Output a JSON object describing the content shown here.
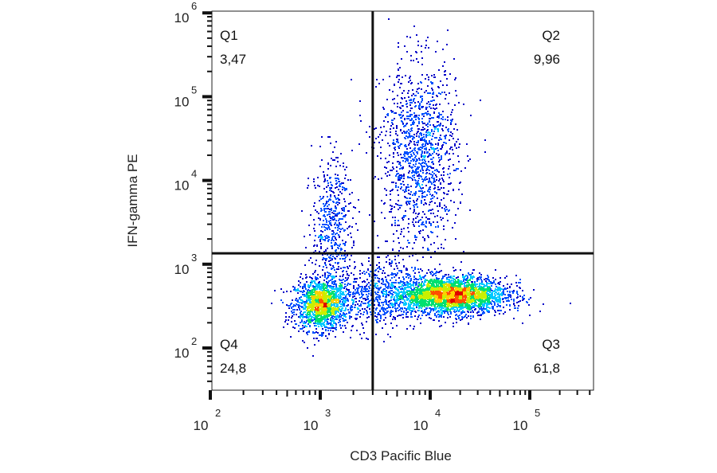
{
  "chart_data": {
    "type": "scatter",
    "subtype": "flow-cytometry-density-dot-plot",
    "xlabel": "CD3 Pacific Blue",
    "ylabel": "IFN-gamma PE",
    "x_scale": "biexponential",
    "y_scale": "log",
    "x_ticks": [
      {
        "base": "10",
        "exp": "2",
        "value": 100
      },
      {
        "base": "10",
        "exp": "3",
        "value": 1000
      },
      {
        "base": "10",
        "exp": "4",
        "value": 10000
      },
      {
        "base": "10",
        "exp": "5",
        "value": 100000
      }
    ],
    "y_ticks": [
      {
        "base": "10",
        "exp": "2",
        "value": 100
      },
      {
        "base": "10",
        "exp": "3",
        "value": 1000
      },
      {
        "base": "10",
        "exp": "4",
        "value": 10000
      },
      {
        "base": "10",
        "exp": "5",
        "value": 100000
      },
      {
        "base": "10",
        "exp": "6",
        "value": 1000000
      }
    ],
    "xlim": [
      100,
      400000
    ],
    "ylim": [
      30,
      1050000
    ],
    "grid": false,
    "gates": {
      "x_threshold": 3000,
      "y_threshold": 1350
    },
    "quadrants": [
      {
        "name": "Q1",
        "value": "3,47",
        "position": "top-left"
      },
      {
        "name": "Q2",
        "value": "9,96",
        "position": "top-right"
      },
      {
        "name": "Q3",
        "value": "61,8",
        "position": "bottom-right"
      },
      {
        "name": "Q4",
        "value": "24,8",
        "position": "bottom-left"
      }
    ],
    "populations": [
      {
        "x_log10_center": 3.0,
        "y_log10_center": 2.52,
        "x_log10_sd": 0.12,
        "y_log10_sd": 0.15,
        "events": 1500
      },
      {
        "x_log10_center": 4.2,
        "y_log10_center": 2.64,
        "x_log10_sd": 0.28,
        "y_log10_sd": 0.11,
        "events": 3000
      },
      {
        "x_log10_center": 3.9,
        "y_log10_center": 4.3,
        "x_log10_sd": 0.18,
        "y_log10_sd": 0.55,
        "events": 1300
      },
      {
        "x_log10_center": 3.1,
        "y_log10_center": 3.5,
        "x_log10_sd": 0.09,
        "y_log10_sd": 0.4,
        "events": 500
      },
      {
        "x_log10_center": 3.5,
        "y_log10_center": 2.65,
        "x_log10_sd": 0.25,
        "y_log10_sd": 0.22,
        "events": 700
      }
    ],
    "colormap": [
      "#0000c8",
      "#0050ff",
      "#00c8ff",
      "#00e070",
      "#c8f000",
      "#ffd000",
      "#ff5000",
      "#e00000"
    ]
  }
}
